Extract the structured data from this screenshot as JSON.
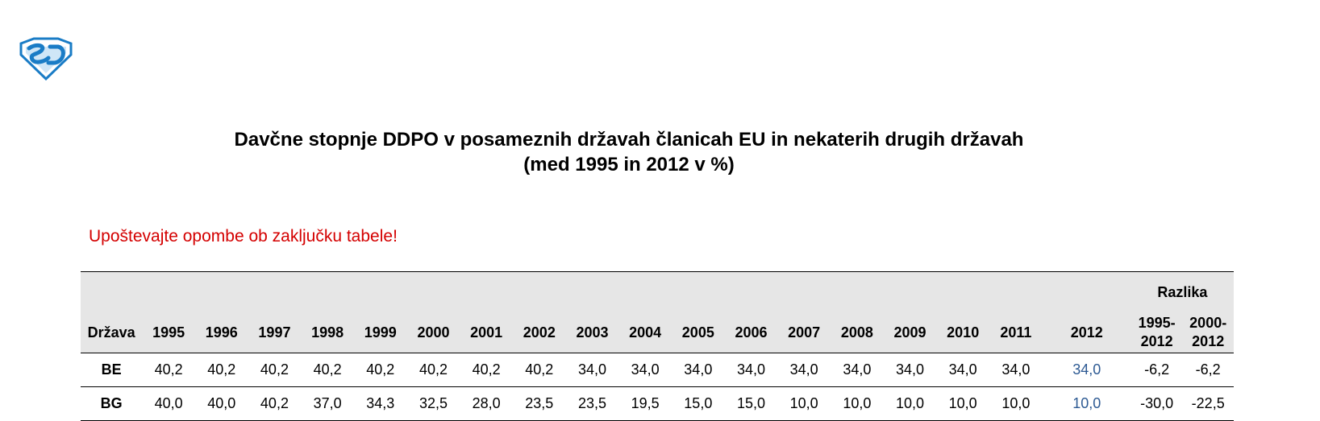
{
  "logo": {
    "icon": "sd-shield-logo-icon",
    "color": "#1a7cc6"
  },
  "title": {
    "line1": "Davčne stopnje DDPO v posameznih državah članicah EU in nekaterih drugih državah",
    "line2": "(med 1995 in 2012 v %)"
  },
  "note": "Upoštevajte opombe ob zaključku tabele!",
  "table": {
    "group_header": "Razlika",
    "columns": [
      "Država",
      "1995",
      "1996",
      "1997",
      "1998",
      "1999",
      "2000",
      "2001",
      "2002",
      "2003",
      "2004",
      "2005",
      "2006",
      "2007",
      "2008",
      "2009",
      "2010",
      "2011",
      "2012",
      "1995-\n2012",
      "2000-\n2012"
    ],
    "rows": [
      [
        "BE",
        "40,2",
        "40,2",
        "40,2",
        "40,2",
        "40,2",
        "40,2",
        "40,2",
        "40,2",
        "34,0",
        "34,0",
        "34,0",
        "34,0",
        "34,0",
        "34,0",
        "34,0",
        "34,0",
        "34,0",
        "34,0",
        "-6,2",
        "-6,2"
      ],
      [
        "BG",
        "40,0",
        "40,0",
        "40,2",
        "37,0",
        "34,3",
        "32,5",
        "28,0",
        "23,5",
        "23,5",
        "19,5",
        "15,0",
        "15,0",
        "10,0",
        "10,0",
        "10,0",
        "10,0",
        "10,0",
        "10,0",
        "-30,0",
        "-22,5"
      ]
    ]
  },
  "colors": {
    "note": "#d40000",
    "header_bg": "#e6e6e6",
    "value_2012": "#2d5a93"
  }
}
